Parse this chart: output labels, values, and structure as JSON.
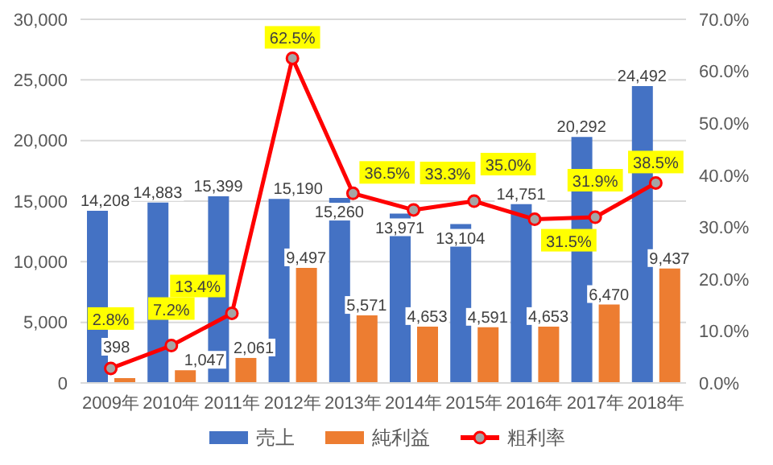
{
  "chart_data": {
    "type": "bar",
    "categories": [
      "2009年",
      "2010年",
      "2011年",
      "2012年",
      "2013年",
      "2014年",
      "2015年",
      "2016年",
      "2017年",
      "2018年"
    ],
    "series": [
      {
        "name": "売上",
        "color": "#4472c4",
        "values": [
          14208,
          14883,
          15399,
          15190,
          15260,
          13971,
          13104,
          14751,
          20292,
          24492
        ],
        "value_labels": [
          "14,208",
          "14,883",
          "15,399",
          "15,190",
          "15,260",
          "13,971",
          "13,104",
          "14,751",
          "20,292",
          "24,492"
        ]
      },
      {
        "name": "純利益",
        "color": "#ed7d31",
        "values": [
          398,
          1047,
          2061,
          9497,
          5571,
          4653,
          4591,
          4653,
          6470,
          9437
        ],
        "value_labels": [
          "398",
          "1,047",
          "2,061",
          "9,497",
          "5,571",
          "4,653",
          "4,591",
          "4,653",
          "6,470",
          "9,437"
        ]
      },
      {
        "name": "粗利率",
        "type": "line",
        "axis": "y2",
        "color": "#ff0000",
        "marker": "circle",
        "values": [
          2.8,
          7.2,
          13.4,
          62.5,
          36.5,
          33.3,
          35.0,
          31.5,
          31.9,
          38.5
        ],
        "value_labels": [
          "2.8%",
          "7.2%",
          "13.4%",
          "62.5%",
          "36.5%",
          "33.3%",
          "35.0%",
          "31.5%",
          "31.9%",
          "38.5%"
        ]
      }
    ],
    "ylim": [
      0,
      30000
    ],
    "yticks": [
      {
        "value": 0,
        "label": "0"
      },
      {
        "value": 5000,
        "label": "5,000"
      },
      {
        "value": 10000,
        "label": "10,000"
      },
      {
        "value": 15000,
        "label": "15,000"
      },
      {
        "value": 20000,
        "label": "20,000"
      },
      {
        "value": 25000,
        "label": "25,000"
      },
      {
        "value": 30000,
        "label": "30,000"
      }
    ],
    "y2lim": [
      0,
      70
    ],
    "y2ticks": [
      {
        "value": 0,
        "label": "0.0%"
      },
      {
        "value": 10,
        "label": "10.0%"
      },
      {
        "value": 20,
        "label": "20.0%"
      },
      {
        "value": 30,
        "label": "30.0%"
      },
      {
        "value": 40,
        "label": "40.0%"
      },
      {
        "value": 50,
        "label": "50.0%"
      },
      {
        "value": 60,
        "label": "60.0%"
      },
      {
        "value": 70,
        "label": "70.0%"
      }
    ],
    "grid": "y",
    "legend": "bottom"
  }
}
